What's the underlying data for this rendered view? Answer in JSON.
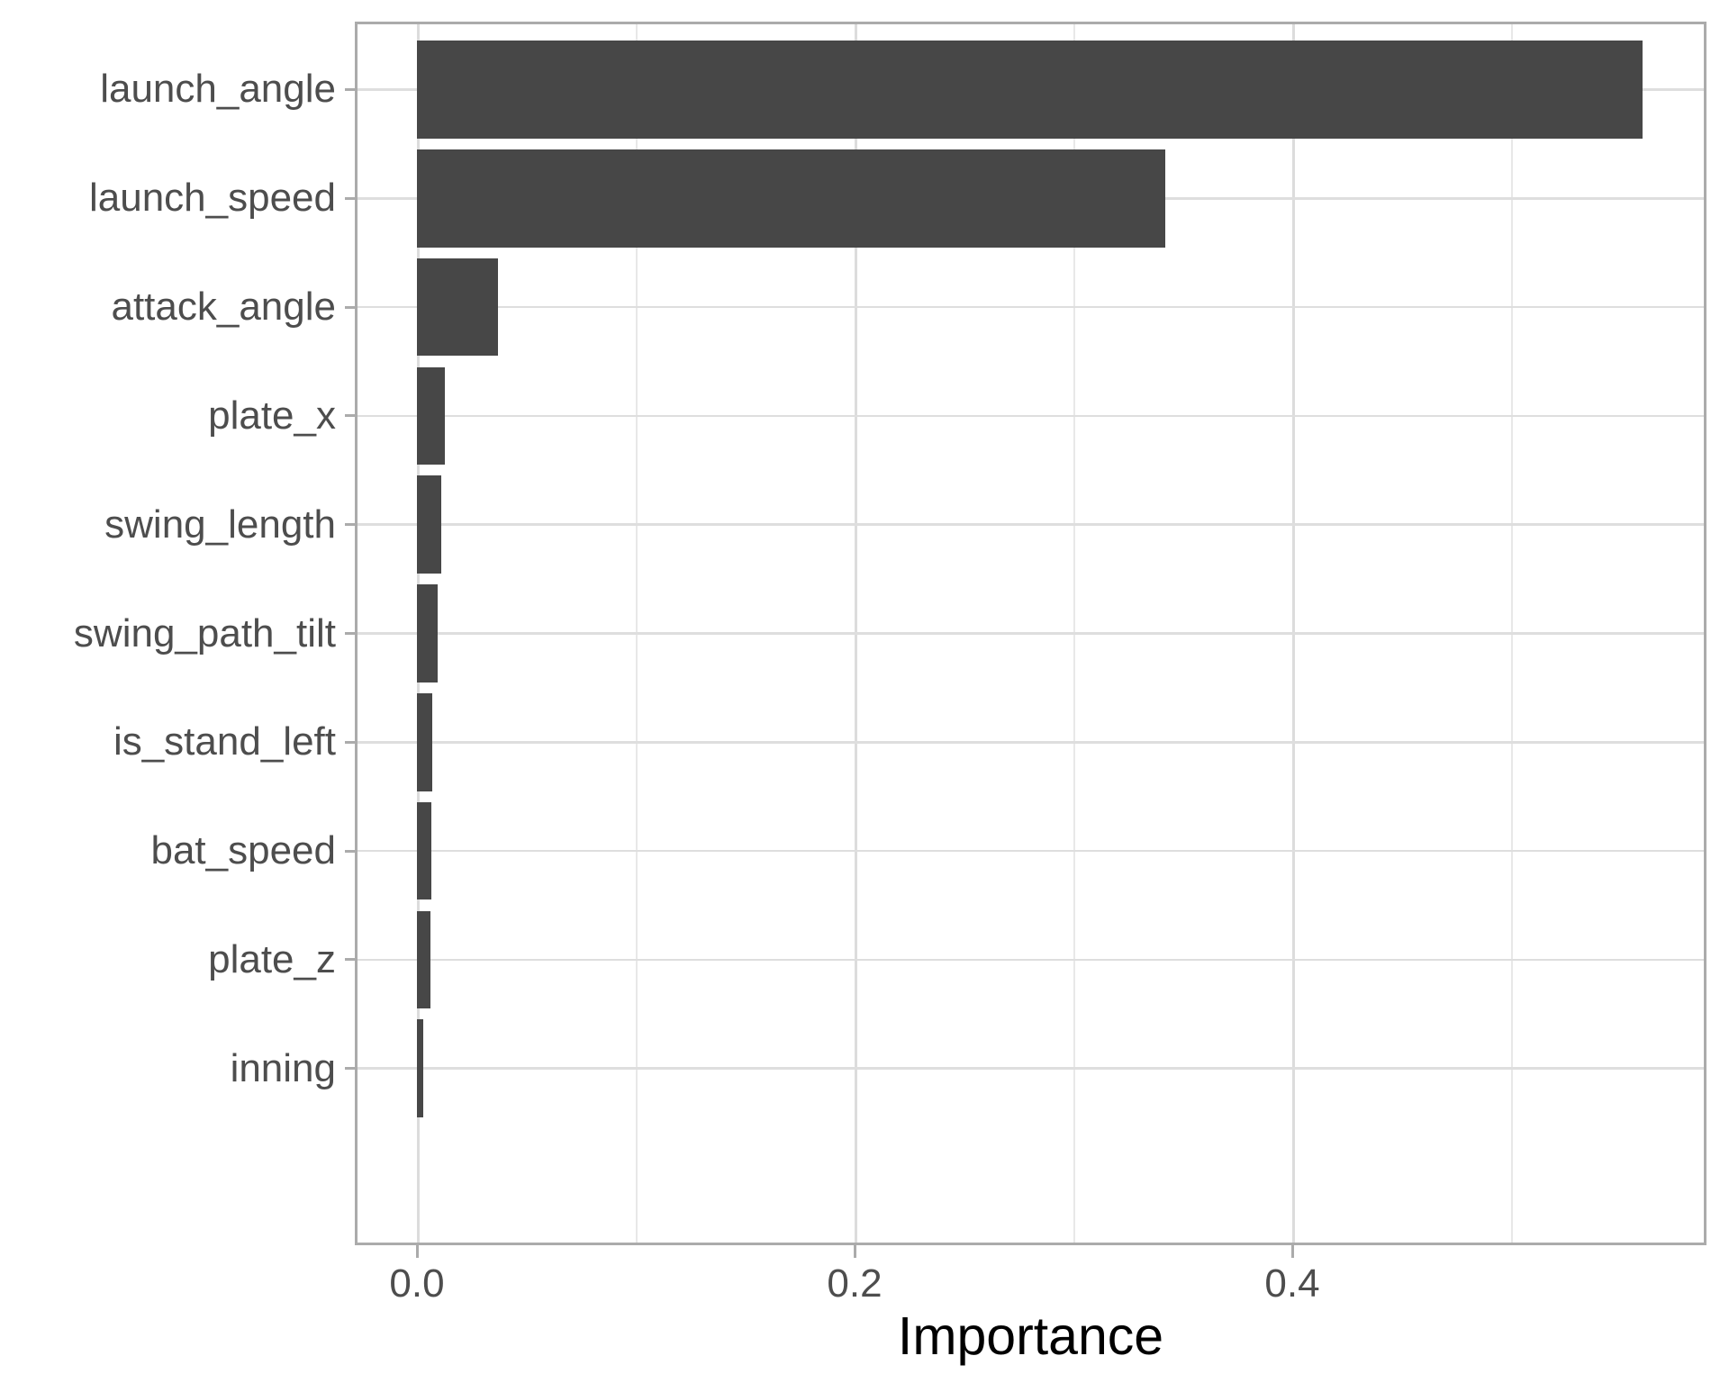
{
  "chart_data": {
    "type": "bar",
    "orientation": "horizontal",
    "title": "",
    "xlabel": "Importance",
    "ylabel": "",
    "categories": [
      "launch_angle",
      "launch_speed",
      "attack_angle",
      "plate_x",
      "swing_length",
      "swing_path_tilt",
      "is_stand_left",
      "bat_speed",
      "plate_z",
      "inning"
    ],
    "values": [
      0.56,
      0.342,
      0.037,
      0.0128,
      0.0111,
      0.0095,
      0.0072,
      0.0066,
      0.0062,
      0.0029
    ],
    "x_ticks_major": [
      0.0,
      0.2,
      0.4
    ],
    "x_tick_labels": [
      "0.0",
      "0.2",
      "0.4"
    ],
    "x_ticks_minor": [
      0.1,
      0.3,
      0.5
    ],
    "xlim": [
      -0.028,
      0.588
    ],
    "bar_rel_height": 0.9,
    "grid": true,
    "legend": false,
    "colors": {
      "bar": "#474747",
      "grid_major": "#dcdcdc",
      "grid_minor": "#e8e8e8",
      "panel_border": "#ababab",
      "tick": "#ababab",
      "axis_text": "#4d4d4d",
      "axis_title": "#000000",
      "background": "#ffffff"
    }
  }
}
